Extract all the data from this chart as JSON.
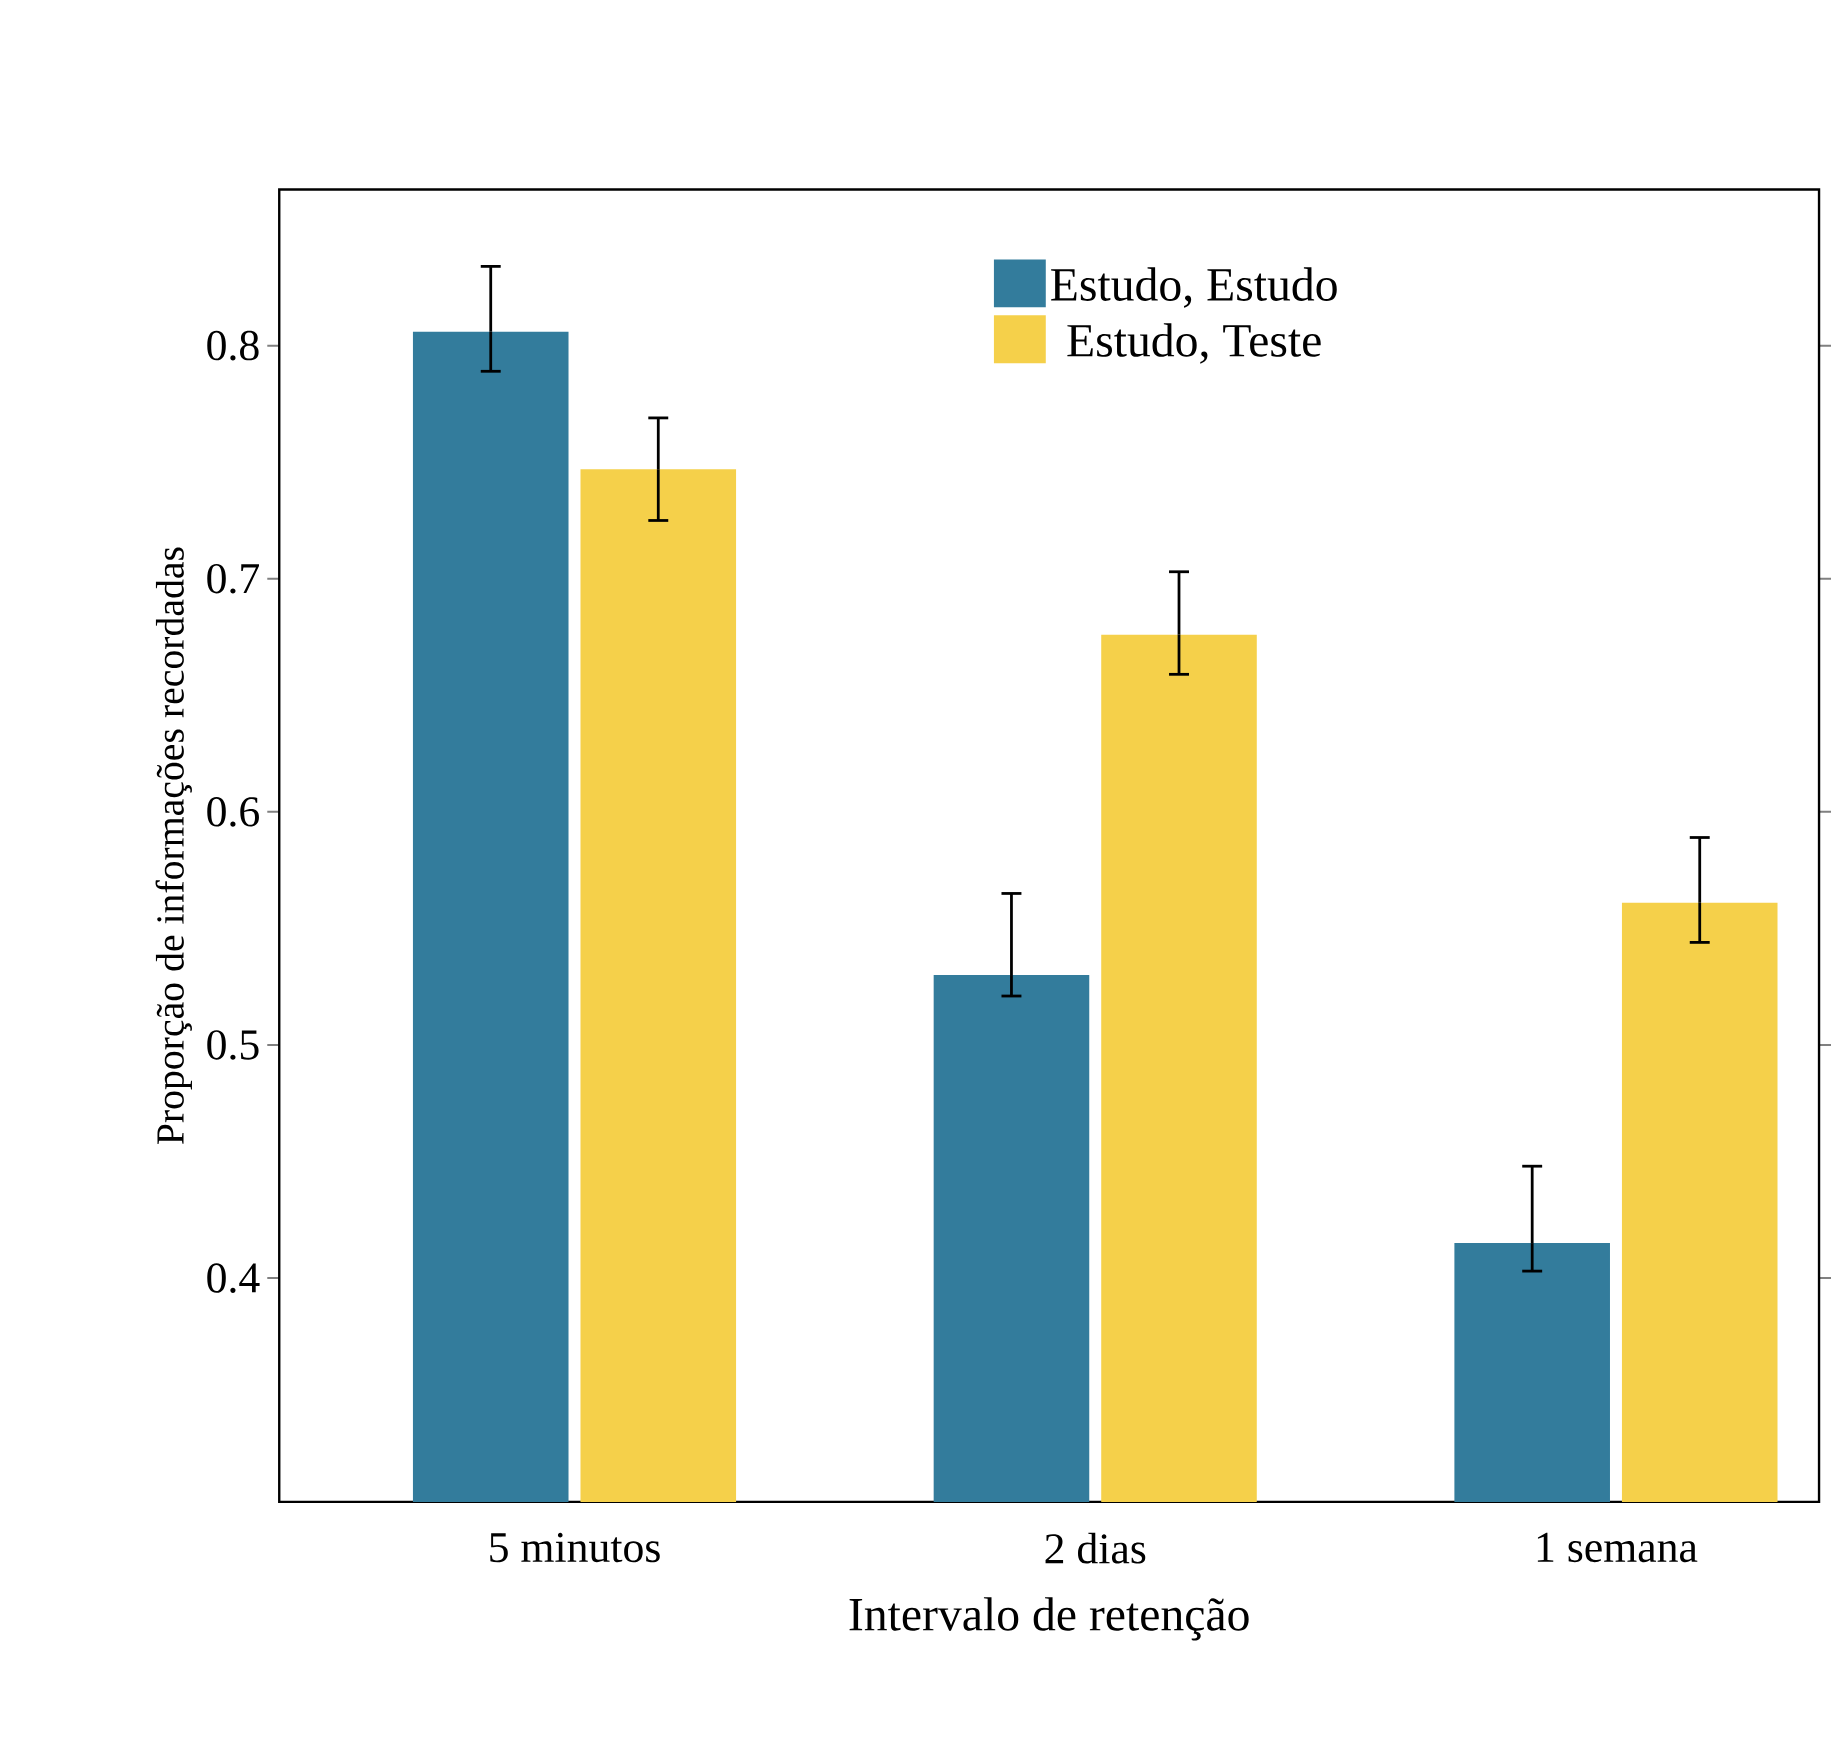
{
  "chart_data": {
    "type": "bar",
    "xlabel": "Intervalo de retenção",
    "ylabel": "Proporção de informações recordadas",
    "categories": [
      "5 minutos",
      "2 dias",
      "1 semana"
    ],
    "series": [
      {
        "name": "Estudo, Estudo",
        "color": "#337c9c",
        "values": [
          0.806,
          0.53,
          0.415
        ],
        "errors": [
          [
            0.789,
            0.834
          ],
          [
            0.521,
            0.565
          ],
          [
            0.403,
            0.448
          ]
        ]
      },
      {
        "name": "Estudo, Teste",
        "color": "#f5d04a",
        "values": [
          0.747,
          0.676,
          0.561
        ],
        "errors": [
          [
            0.725,
            0.769
          ],
          [
            0.659,
            0.703
          ],
          [
            0.544,
            0.589
          ]
        ]
      }
    ],
    "ylim": [
      0.304,
      0.867
    ],
    "yticks": [
      0.4,
      0.5,
      0.6,
      0.7,
      0.8
    ],
    "legend": "top right",
    "grid": false
  }
}
